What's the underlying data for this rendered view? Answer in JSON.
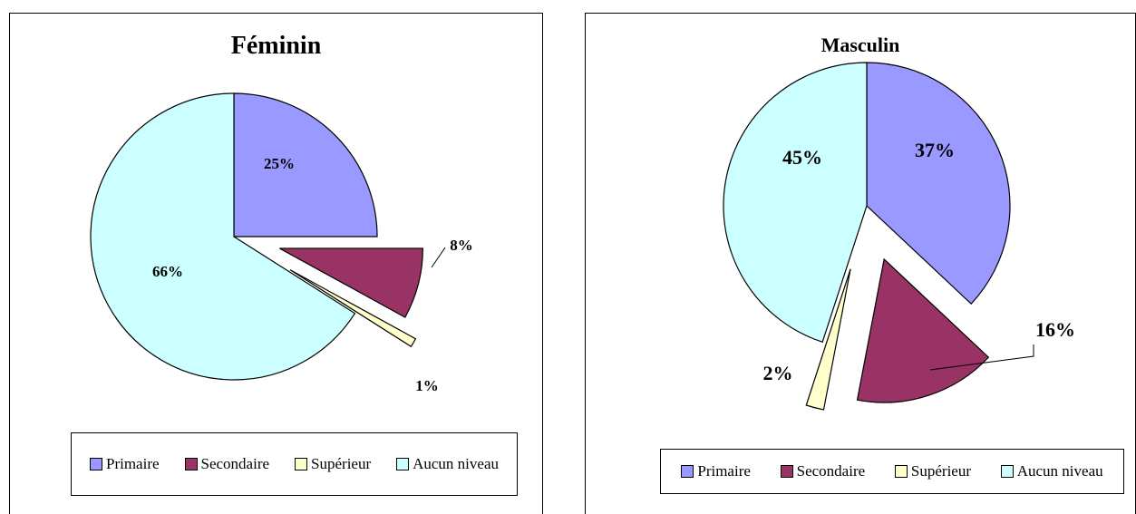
{
  "chart_data": [
    {
      "type": "pie",
      "title": "Féminin",
      "slices": [
        {
          "label": "Primaire",
          "value": 25,
          "display": "25%",
          "color": "#9999FF"
        },
        {
          "label": "Secondaire",
          "value": 8,
          "display": "8%",
          "color": "#993366"
        },
        {
          "label": "Supérieur",
          "value": 1,
          "display": "1%",
          "color": "#FFFFCC"
        },
        {
          "label": "Aucun niveau",
          "value": 66,
          "display": "66%",
          "color": "#CCFFFF"
        }
      ],
      "legend": [
        "Primaire",
        "Secondaire",
        "Supérieur",
        "Aucun niveau"
      ],
      "legend_position": "bottom"
    },
    {
      "type": "pie",
      "title": "Masculin",
      "slices": [
        {
          "label": "Primaire",
          "value": 37,
          "display": "37%",
          "color": "#9999FF"
        },
        {
          "label": "Secondaire",
          "value": 16,
          "display": "16%",
          "color": "#993366"
        },
        {
          "label": "Supérieur",
          "value": 2,
          "display": "2%",
          "color": "#FFFFCC"
        },
        {
          "label": "Aucun niveau",
          "value": 45,
          "display": "45%",
          "color": "#CCFFFF"
        }
      ],
      "legend": [
        "Primaire",
        "Secondaire",
        "Supérieur",
        "Aucun niveau"
      ],
      "legend_position": "bottom"
    }
  ]
}
